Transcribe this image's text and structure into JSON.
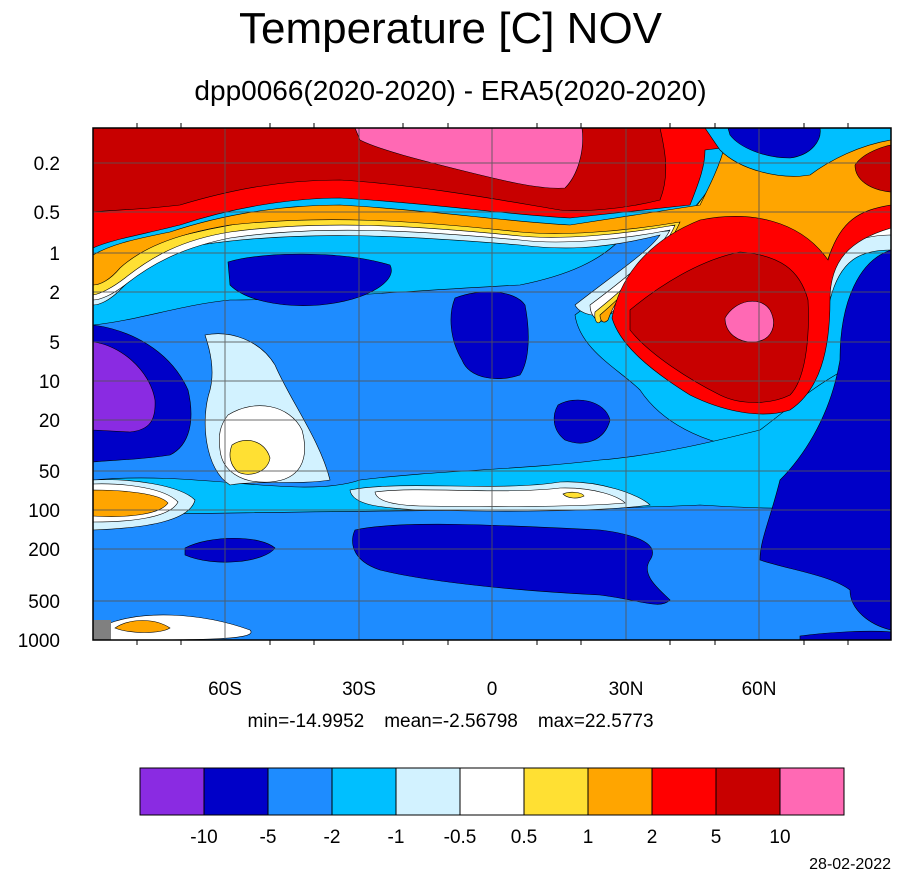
{
  "chart_data": {
    "type": "heatmap",
    "title": "Temperature [C] NOV",
    "subtitle": "dpp0066(2020-2020) - ERA5(2020-2020)",
    "x_ticks": [
      "60S",
      "30S",
      "0",
      "30N",
      "60N"
    ],
    "x_tick_values": [
      -60,
      -30,
      0,
      30,
      60
    ],
    "xlim": [
      -90,
      90
    ],
    "y_ticks": [
      "0.2",
      "0.5",
      "1",
      "2",
      "5",
      "10",
      "20",
      "50",
      "100",
      "200",
      "500",
      "1000"
    ],
    "y_tick_values": [
      0.2,
      0.5,
      1,
      2,
      5,
      10,
      20,
      50,
      100,
      200,
      500,
      1000
    ],
    "ylim": [
      1000,
      0.1
    ],
    "y_scale": "log",
    "grid": true,
    "stats": {
      "min": "min=-14.9952",
      "mean": "mean=-2.56798",
      "max": "max=22.5773"
    },
    "colorbar": {
      "labels": [
        "-10",
        "-5",
        "-2",
        "-1",
        "-0.5",
        "0.5",
        "1",
        "2",
        "5",
        "10"
      ],
      "colors": [
        "#8a2be2",
        "#0000c8",
        "#1e8cff",
        "#00bfff",
        "#d2f2ff",
        "#ffffff",
        "#ffe033",
        "#ffa500",
        "#ff0000",
        "#c80000",
        "#ff69b4"
      ]
    },
    "regions": [
      {
        "lat": -83,
        "plev": 15,
        "value": -12
      },
      {
        "lat": -50,
        "plev": 50,
        "value": 1.5
      },
      {
        "lat": -82,
        "plev": 100,
        "value": 1.5
      },
      {
        "lat": 0,
        "plev": 3,
        "value": -7
      },
      {
        "lat": -45,
        "plev": 2,
        "value": -7
      },
      {
        "lat": 58,
        "plev": 4,
        "value": 12
      },
      {
        "lat": 55,
        "plev": 5,
        "value": 7
      },
      {
        "lat": 0,
        "plev": 0.2,
        "value": 12
      },
      {
        "lat": 0,
        "plev": 300,
        "value": -7
      },
      {
        "lat": 85,
        "plev": 200,
        "value": -7
      },
      {
        "lat": 20,
        "plev": 100,
        "value": 0.7
      }
    ]
  },
  "footer": {
    "date": "28-02-2022"
  }
}
